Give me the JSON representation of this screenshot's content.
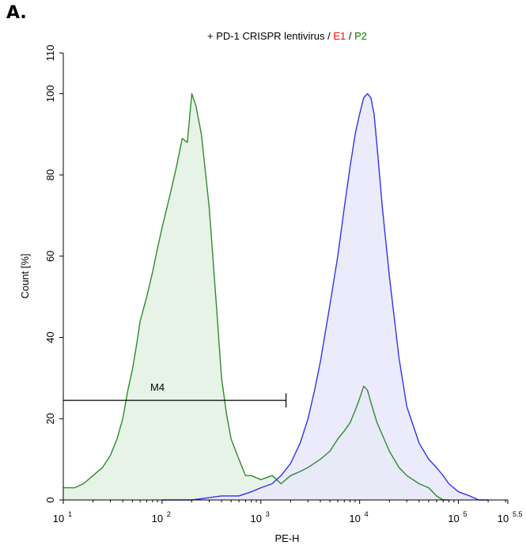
{
  "panel_label": "A.",
  "chart_data": {
    "type": "area",
    "title": {
      "prefix": "+ PD-1 CRISPR lentivirus / ",
      "e1": "E1",
      "sep": " / ",
      "p2": "P2",
      "e1_color": "#ff0000",
      "p2_color": "#008000"
    },
    "xlabel": "PE-H",
    "ylabel": "Count  [%]",
    "x_scale": "log10",
    "xlim": [
      10,
      316228
    ],
    "ylim": [
      0,
      110
    ],
    "y_ticks": [
      0,
      20,
      40,
      60,
      80,
      100,
      110
    ],
    "x_ticks": [
      {
        "value": 10,
        "base": "10",
        "exp": "1"
      },
      {
        "value": 100,
        "base": "10",
        "exp": "2"
      },
      {
        "value": 1000,
        "base": "10",
        "exp": "3"
      },
      {
        "value": 10000,
        "base": "10",
        "exp": "4"
      },
      {
        "value": 100000,
        "base": "10",
        "exp": "5"
      },
      {
        "value": 316228,
        "base": "10",
        "exp": "5.5"
      }
    ],
    "grid": false,
    "series": [
      {
        "name": "P2",
        "line_color": "#2e8b2e",
        "fill_color": "#e3f1e3",
        "x": [
          10,
          13,
          16,
          20,
          25,
          30,
          35,
          40,
          45,
          50,
          55,
          60,
          70,
          80,
          90,
          100,
          120,
          140,
          160,
          180,
          200,
          220,
          250,
          300,
          350,
          400,
          450,
          500,
          600,
          700,
          800,
          1000,
          1300,
          1600,
          2000,
          2500,
          3000,
          4000,
          5000,
          6000,
          7000,
          8000,
          9000,
          10000,
          11000,
          12000,
          13000,
          15000,
          20000,
          25000,
          30000,
          40000,
          50000,
          60000,
          70000,
          80000
        ],
        "y": [
          3,
          3,
          4,
          6,
          8,
          11,
          15,
          20,
          27,
          32,
          38,
          44,
          50,
          56,
          62,
          67,
          75,
          82,
          89,
          88,
          100,
          97,
          90,
          72,
          50,
          30,
          21,
          15,
          10,
          6,
          6,
          5,
          6,
          4,
          6,
          7,
          8,
          10,
          12,
          15,
          17,
          19,
          22,
          25,
          28,
          27,
          24,
          19,
          12,
          8,
          6,
          4,
          3,
          1,
          0,
          0
        ]
      },
      {
        "name": "",
        "line_color": "#3333ee",
        "fill_color": "#e8e8fa",
        "x": [
          100,
          200,
          400,
          600,
          800,
          1000,
          1300,
          1600,
          2000,
          2500,
          3000,
          3500,
          4000,
          5000,
          6000,
          7000,
          8000,
          9000,
          10000,
          11000,
          12000,
          13000,
          14000,
          15000,
          17000,
          20000,
          25000,
          30000,
          40000,
          50000,
          60000,
          70000,
          80000,
          100000,
          130000,
          160000,
          200000
        ],
        "y": [
          0,
          0,
          1,
          1,
          2,
          3,
          4,
          6,
          9,
          14,
          20,
          27,
          34,
          48,
          60,
          72,
          82,
          90,
          95,
          99,
          100,
          99,
          95,
          87,
          72,
          55,
          35,
          23,
          14,
          10,
          8,
          6,
          4,
          2,
          1,
          0,
          0
        ]
      }
    ],
    "annotations": [
      {
        "label": "M4",
        "x_start": 10,
        "x_end": 1800,
        "y": 24.5
      }
    ]
  }
}
